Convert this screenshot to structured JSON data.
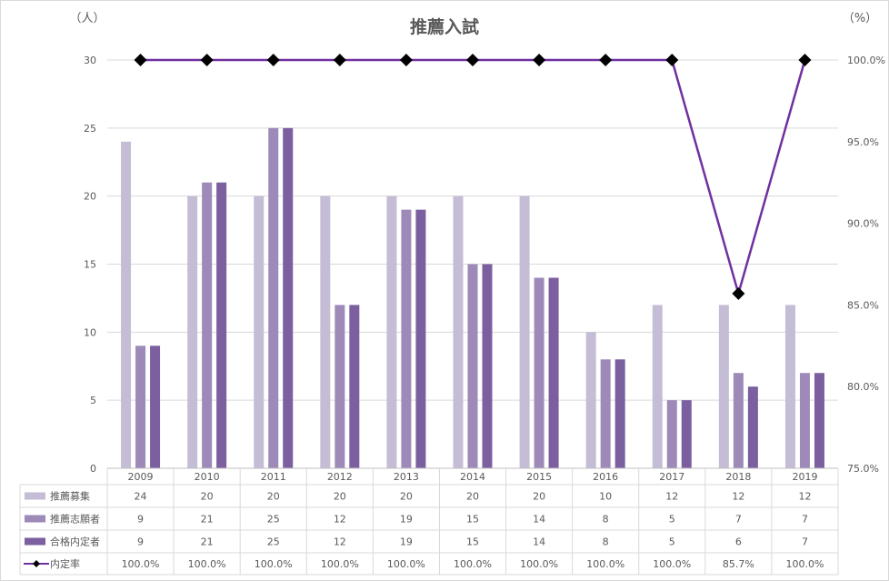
{
  "chart_data": {
    "type": "bar",
    "title": "推薦入試",
    "y_left_unit": "（人）",
    "y_right_unit": "（%）",
    "categories": [
      "2009",
      "2010",
      "2011",
      "2012",
      "2013",
      "2014",
      "2015",
      "2016",
      "2017",
      "2018",
      "2019"
    ],
    "ylim": [
      0,
      30
    ],
    "yticks": [
      "0",
      "5",
      "10",
      "15",
      "20",
      "25",
      "30"
    ],
    "y2lim": [
      75,
      100
    ],
    "y2ticks": [
      "75.0%",
      "80.0%",
      "85.0%",
      "90.0%",
      "95.0%",
      "100.0%"
    ],
    "grid": true,
    "legend_placement": "data-table-left",
    "series": [
      {
        "name": "推薦募集",
        "type": "bar",
        "color": "#c5bcd6",
        "values": [
          24,
          20,
          20,
          20,
          20,
          20,
          20,
          10,
          12,
          12,
          12
        ]
      },
      {
        "name": "推薦志願者",
        "type": "bar",
        "color": "#9d8ab8",
        "values": [
          9,
          21,
          25,
          12,
          19,
          15,
          14,
          8,
          5,
          7,
          7
        ]
      },
      {
        "name": "合格内定者",
        "type": "bar",
        "color": "#7b5f9f",
        "values": [
          9,
          21,
          25,
          12,
          19,
          15,
          14,
          8,
          5,
          6,
          7
        ]
      },
      {
        "name": "内定率",
        "type": "line",
        "axis": "right",
        "color": "#7030a0",
        "marker_color": "#000000",
        "values": [
          100.0,
          100.0,
          100.0,
          100.0,
          100.0,
          100.0,
          100.0,
          100.0,
          100.0,
          85.7,
          100.0
        ],
        "labels": [
          "100.0%",
          "100.0%",
          "100.0%",
          "100.0%",
          "100.0%",
          "100.0%",
          "100.0%",
          "100.0%",
          "100.0%",
          "85.7%",
          "100.0%"
        ]
      }
    ]
  }
}
